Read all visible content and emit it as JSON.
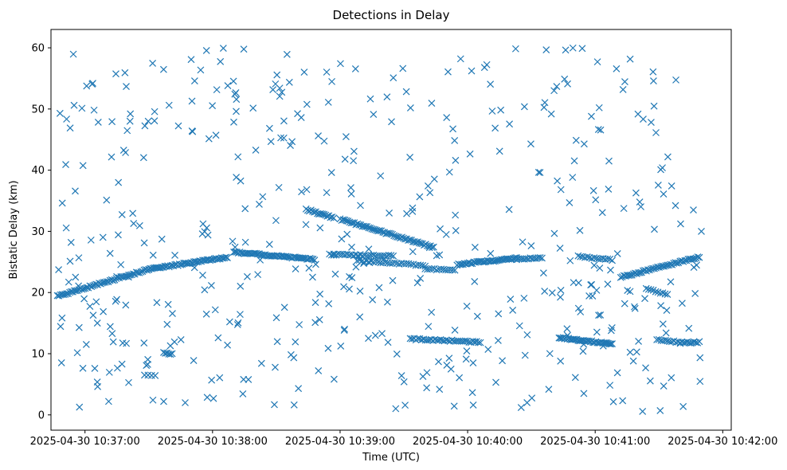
{
  "chart_data": {
    "type": "scatter",
    "title": "Detections in Delay",
    "xlabel": "Time (UTC)",
    "ylabel": "Bistatic Delay (km)",
    "marker": "x",
    "color": "#1f77b4",
    "grid": false,
    "xlim": [
      "2025-04-30 10:36:44",
      "2025-04-30 10:42:04"
    ],
    "ylim": [
      -2.5,
      63
    ],
    "x_ticks": [
      "2025-04-30 10:37:00",
      "2025-04-30 10:38:00",
      "2025-04-30 10:39:00",
      "2025-04-30 10:40:00",
      "2025-04-30 10:41:00",
      "2025-04-30 10:42:00"
    ],
    "y_ticks": [
      0,
      10,
      20,
      30,
      40,
      50,
      60
    ],
    "track_segments": [
      {
        "x0": "2025-04-30 10:36:47",
        "y0": 19.4,
        "x1": "2025-04-30 10:37:30",
        "y1": 23.8,
        "n": 60
      },
      {
        "x0": "2025-04-30 10:37:30",
        "y0": 23.8,
        "x1": "2025-04-30 10:38:07",
        "y1": 25.8,
        "n": 55
      },
      {
        "x0": "2025-04-30 10:38:10",
        "y0": 26.6,
        "x1": "2025-04-30 10:38:48",
        "y1": 25.4,
        "n": 55
      },
      {
        "x0": "2025-04-30 10:38:44",
        "y0": 33.6,
        "x1": "2025-04-30 10:38:57",
        "y1": 32.2,
        "n": 18
      },
      {
        "x0": "2025-04-30 10:39:00",
        "y0": 32.0,
        "x1": "2025-04-30 10:39:44",
        "y1": 27.4,
        "n": 60
      },
      {
        "x0": "2025-04-30 10:38:55",
        "y0": 26.2,
        "x1": "2025-04-30 10:39:25",
        "y1": 26.0,
        "n": 30
      },
      {
        "x0": "2025-04-30 10:39:08",
        "y0": 25.2,
        "x1": "2025-04-30 10:39:40",
        "y1": 24.4,
        "n": 30
      },
      {
        "x0": "2025-04-30 10:39:40",
        "y0": 23.9,
        "x1": "2025-04-30 10:39:54",
        "y1": 23.6,
        "n": 14
      },
      {
        "x0": "2025-04-30 10:39:33",
        "y0": 12.4,
        "x1": "2025-04-30 10:40:06",
        "y1": 11.9,
        "n": 38
      },
      {
        "x0": "2025-04-30 10:39:55",
        "y0": 24.6,
        "x1": "2025-04-30 10:40:23",
        "y1": 25.6,
        "n": 40
      },
      {
        "x0": "2025-04-30 10:40:23",
        "y0": 25.4,
        "x1": "2025-04-30 10:40:35",
        "y1": 25.7,
        "n": 14
      },
      {
        "x0": "2025-04-30 10:40:43",
        "y0": 12.6,
        "x1": "2025-04-30 10:41:08",
        "y1": 11.6,
        "n": 40
      },
      {
        "x0": "2025-04-30 10:40:52",
        "y0": 25.9,
        "x1": "2025-04-30 10:41:08",
        "y1": 25.3,
        "n": 16
      },
      {
        "x0": "2025-04-30 10:41:12",
        "y0": 22.5,
        "x1": "2025-04-30 10:41:49",
        "y1": 25.8,
        "n": 50
      },
      {
        "x0": "2025-04-30 10:41:24",
        "y0": 20.6,
        "x1": "2025-04-30 10:41:34",
        "y1": 19.6,
        "n": 10
      },
      {
        "x0": "2025-04-30 10:41:29",
        "y0": 12.4,
        "x1": "2025-04-30 10:41:40",
        "y1": 11.8,
        "n": 12
      },
      {
        "x0": "2025-04-30 10:41:40",
        "y0": 11.8,
        "x1": "2025-04-30 10:41:49",
        "y1": 11.9,
        "n": 12
      },
      {
        "x0": "2025-04-30 10:37:37",
        "y0": 10.1,
        "x1": "2025-04-30 10:37:41",
        "y1": 10.0,
        "n": 6
      },
      {
        "x0": "2025-04-30 10:37:28",
        "y0": 6.6,
        "x1": "2025-04-30 10:37:33",
        "y1": 6.5,
        "n": 4
      }
    ],
    "scattered_points": {
      "n": 480,
      "x_range": [
        "2025-04-30 10:36:47",
        "2025-04-30 10:41:50"
      ],
      "y_range": [
        0.5,
        60
      ]
    }
  }
}
